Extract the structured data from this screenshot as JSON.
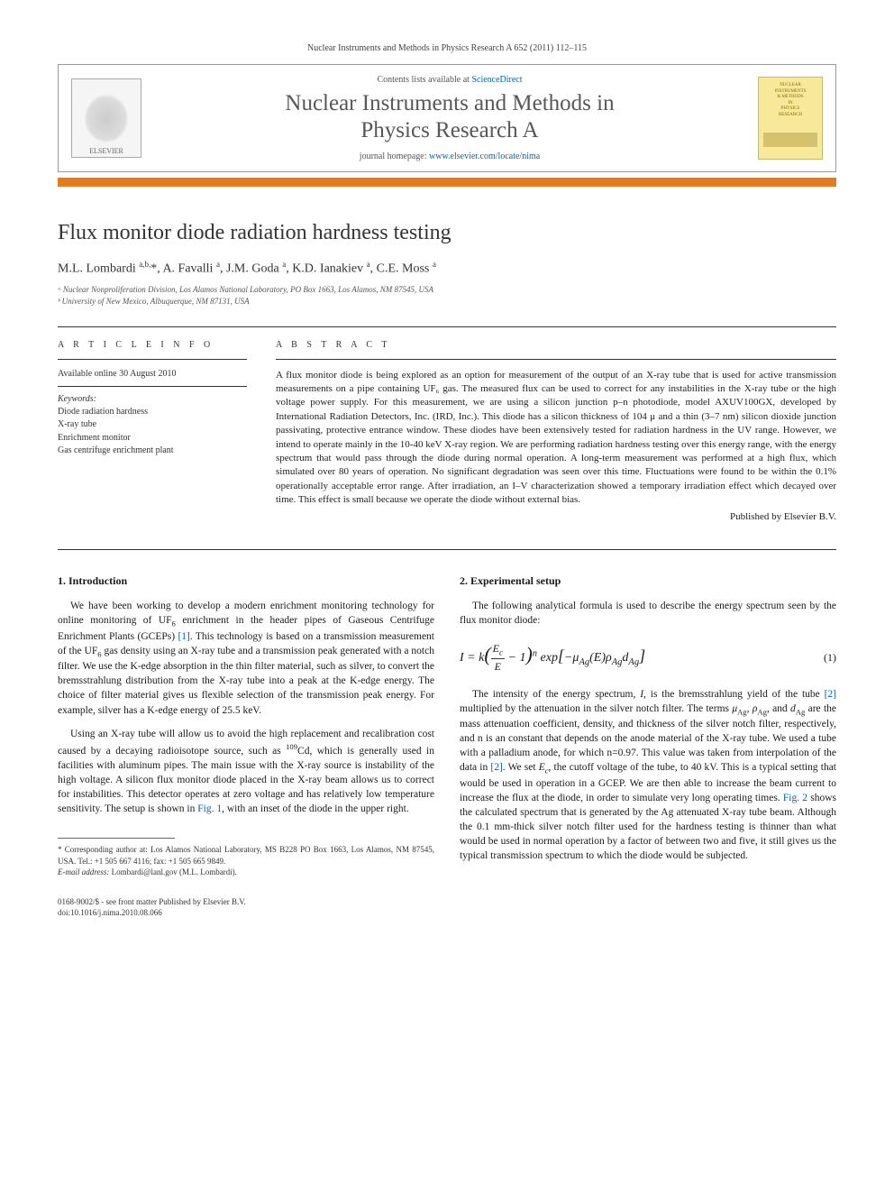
{
  "journal_ref": "Nuclear Instruments and Methods in Physics Research A 652 (2011) 112–115",
  "header": {
    "elsevier": "ELSEVIER",
    "contents_prefix": "Contents lists available at ",
    "contents_link": "ScienceDirect",
    "journal_title_line1": "Nuclear Instruments and Methods in",
    "journal_title_line2": "Physics Research A",
    "homepage_prefix": "journal homepage: ",
    "homepage_url": "www.elsevier.com/locate/nima",
    "cover_lines": [
      "NUCLEAR",
      "INSTRUMENTS",
      "& METHODS",
      "IN",
      "PHYSICS",
      "RESEARCH"
    ]
  },
  "title": "Flux monitor diode radiation hardness testing",
  "authors_html": "M.L. Lombardi <sup>a,b,</sup>*, A. Favalli <sup>a</sup>, J.M. Goda <sup>a</sup>, K.D. Ianakiev <sup>a</sup>, C.E. Moss <sup>a</sup>",
  "affiliations": [
    "ᵃ Nuclear Nonproliferation Division, Los Alamos National Laboratory, PO Box 1663, Los Alamos, NM 87545, USA",
    "ᵇ University of New Mexico, Albuquerque, NM 87131, USA"
  ],
  "article_info": {
    "heading": "A R T I C L E  I N F O",
    "available": "Available online 30 August 2010",
    "keywords_label": "Keywords:",
    "keywords": [
      "Diode radiation hardness",
      "X-ray tube",
      "Enrichment monitor",
      "Gas centrifuge enrichment plant"
    ]
  },
  "abstract": {
    "heading": "A B S T R A C T",
    "text": "A flux monitor diode is being explored as an option for measurement of the output of an X-ray tube that is used for active transmission measurements on a pipe containing UF₆ gas. The measured flux can be used to correct for any instabilities in the X-ray tube or the high voltage power supply. For this measurement, we are using a silicon junction p–n photodiode, model AXUV100GX, developed by International Radiation Detectors, Inc. (IRD, Inc.). This diode has a silicon thickness of 104 μ and a thin (3–7 nm) silicon dioxide junction passivating, protective entrance window. These diodes have been extensively tested for radiation hardness in the UV range. However, we intend to operate mainly in the 10-40 keV X-ray region. We are performing radiation hardness testing over this energy range, with the energy spectrum that would pass through the diode during normal operation. A long-term measurement was performed at a high flux, which simulated over 80 years of operation. No significant degradation was seen over this time. Fluctuations were found to be within the 0.1% operationally acceptable error range. After irradiation, an I–V characterization showed a temporary irradiation effect which decayed over time. This effect is small because we operate the diode without external bias.",
    "publisher": "Published by Elsevier B.V."
  },
  "section1": {
    "heading": "1.  Introduction",
    "p1": "We have been working to develop a modern enrichment monitoring technology for online monitoring of UF₆ enrichment in the header pipes of Gaseous Centrifuge Enrichment Plants (GCEPs) [1]. This technology is based on a transmission measurement of the UF₆ gas density using an X-ray tube and a transmission peak generated with a notch filter. We use the K-edge absorption in the thin filter material, such as silver, to convert the bremsstrahlung distribution from the X-ray tube into a peak at the K-edge energy. The choice of filter material gives us flexible selection of the transmission peak energy. For example, silver has a K-edge energy of 25.5 keV.",
    "p2": "Using an X-ray tube will allow us to avoid the high replacement and recalibration cost caused by a decaying radioisotope source, such as ¹⁰⁹Cd, which is generally used in facilities with aluminum pipes. The main issue with the X-ray source is instability of the high voltage. A silicon flux monitor diode placed in the X-ray beam allows us to correct for instabilities. This detector operates at zero voltage and has relatively low temperature sensitivity. The setup is shown in Fig. 1, with an inset of the diode in the upper right."
  },
  "section2": {
    "heading": "2.  Experimental setup",
    "p1": "The following analytical formula is used to describe the energy spectrum seen by the flux monitor diode:",
    "eq_num": "(1)",
    "p2": "The intensity of the energy spectrum, I, is the bremsstrahlung yield of the tube [2] multiplied by the attenuation in the silver notch filter. The terms μ_Ag, ρ_Ag, and d_Ag are the mass attenuation coefficient, density, and thickness of the silver notch filter, respectively, and n is an constant that depends on the anode material of the X-ray tube. We used a tube with a palladium anode, for which n=0.97. This value was taken from interpolation of the data in [2]. We set E_c, the cutoff voltage of the tube, to 40 kV. This is a typical setting that would be used in operation in a GCEP. We are then able to increase the beam current to increase the flux at the diode, in order to simulate very long operating times. Fig. 2 shows the calculated spectrum that is generated by the Ag attenuated X-ray tube beam. Although the 0.1 mm-thick silver notch filter used for the hardness testing is thinner than what would be used in normal operation by a factor of between two and five, it still gives us the typical transmission spectrum to which the diode would be subjected."
  },
  "footnote": {
    "corr": "* Corresponding author at: Los Alamos National Laboratory, MS B228 PO Box 1663, Los Alamos, NM 87545, USA. Tel.: +1 505 667 4116; fax: +1 505 665 9849.",
    "email_label": "E-mail address: ",
    "email": "Lombardi@lanl.gov (M.L. Lombardi)."
  },
  "footer": {
    "line1": "0168-9002/$ - see front matter Published by Elsevier B.V.",
    "line2": "doi:10.1016/j.nima.2010.08.066"
  },
  "links": {
    "ref1": "[1]",
    "ref2": "[2]",
    "fig1": "Fig. 1",
    "fig2": "Fig. 2"
  }
}
